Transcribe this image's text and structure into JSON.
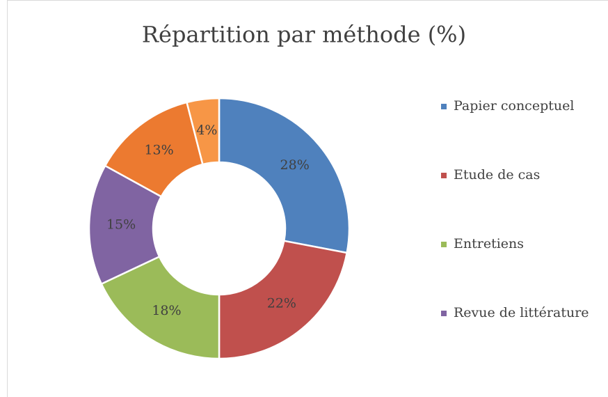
{
  "chart_data": {
    "type": "donut",
    "title": "Répartition par méthode (%)",
    "categories": [
      "Papier conceptuel",
      "Etude de cas",
      "Entretiens",
      "Revue de littérature",
      null,
      null
    ],
    "values": [
      28,
      22,
      18,
      15,
      13,
      4
    ],
    "value_labels": [
      "28%",
      "22%",
      "18%",
      "15%",
      "13%",
      "4%"
    ],
    "colors": [
      "#4f81bd",
      "#c0504d",
      "#9bbb59",
      "#8064a2",
      "#ec7a30",
      "#f79646"
    ],
    "legend": "right"
  }
}
